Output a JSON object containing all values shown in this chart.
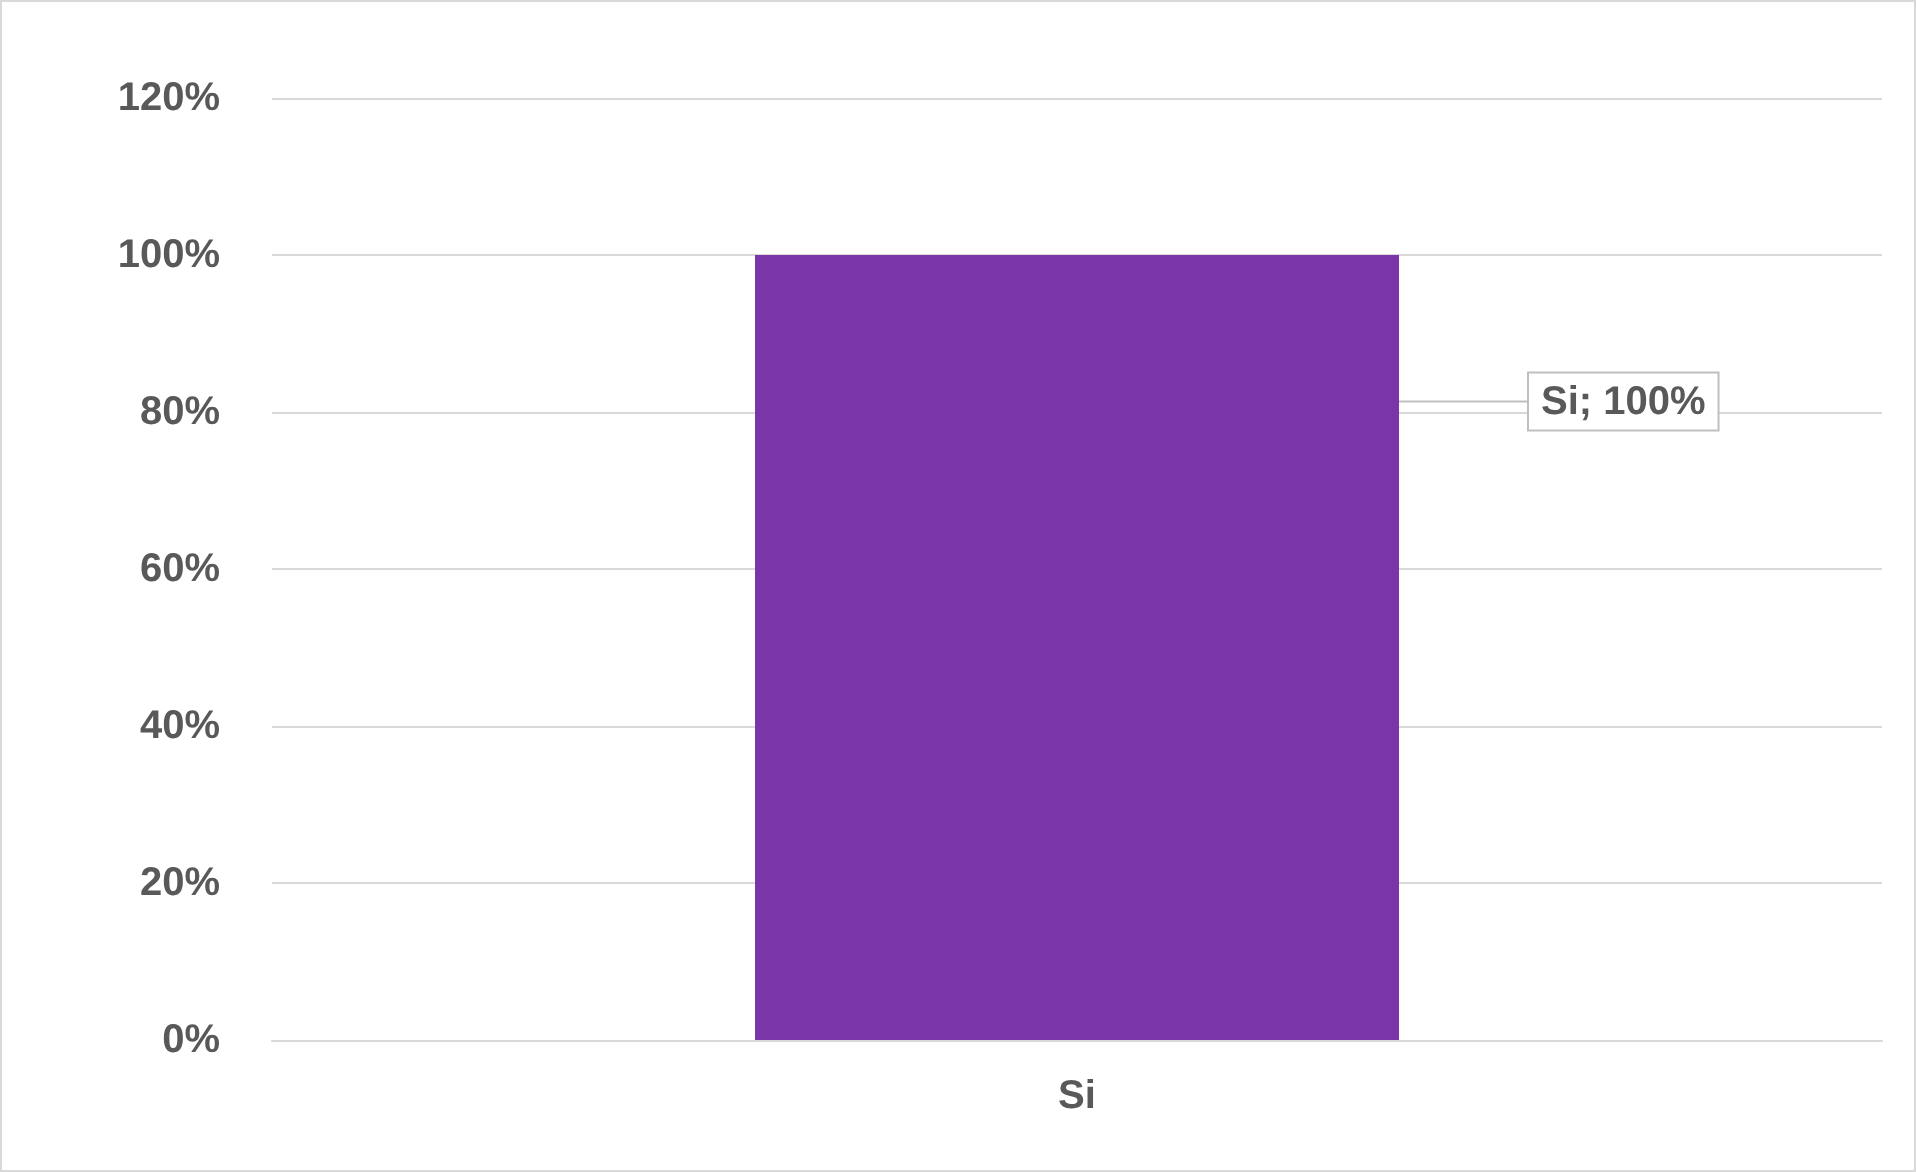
{
  "chart_data": {
    "type": "bar",
    "categories": [
      "Si"
    ],
    "values": [
      100
    ],
    "color": "#7a36a8",
    "value_labels": [
      "Si; 100%"
    ],
    "ylim": [
      0,
      120
    ],
    "yticks": [
      {
        "value": 0,
        "label": "0%"
      },
      {
        "value": 20,
        "label": "20%"
      },
      {
        "value": 40,
        "label": "40%"
      },
      {
        "value": 60,
        "label": "60%"
      },
      {
        "value": 80,
        "label": "80%"
      },
      {
        "value": 100,
        "label": "100%"
      },
      {
        "value": 120,
        "label": "120%"
      }
    ],
    "grid": "y"
  }
}
